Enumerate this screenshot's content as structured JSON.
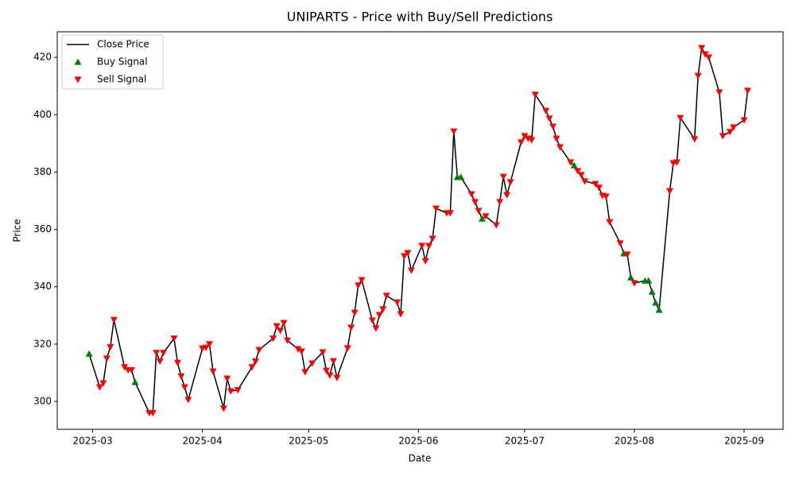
{
  "chart_data": {
    "type": "line",
    "title": "UNIPARTS - Price with Buy/Sell Predictions",
    "x_label": "Date",
    "y_label": "Price",
    "x": [
      "2025-02-28",
      "2025-03-03",
      "2025-03-04",
      "2025-03-05",
      "2025-03-06",
      "2025-03-07",
      "2025-03-10",
      "2025-03-11",
      "2025-03-12",
      "2025-03-13",
      "2025-03-17",
      "2025-03-18",
      "2025-03-19",
      "2025-03-20",
      "2025-03-21",
      "2025-03-24",
      "2025-03-25",
      "2025-03-26",
      "2025-03-27",
      "2025-03-28",
      "2025-04-01",
      "2025-04-02",
      "2025-04-03",
      "2025-04-04",
      "2025-04-07",
      "2025-04-08",
      "2025-04-09",
      "2025-04-11",
      "2025-04-15",
      "2025-04-16",
      "2025-04-17",
      "2025-04-21",
      "2025-04-22",
      "2025-04-23",
      "2025-04-24",
      "2025-04-25",
      "2025-04-28",
      "2025-04-29",
      "2025-04-30",
      "2025-05-02",
      "2025-05-05",
      "2025-05-06",
      "2025-05-07",
      "2025-05-08",
      "2025-05-09",
      "2025-05-12",
      "2025-05-13",
      "2025-05-14",
      "2025-05-15",
      "2025-05-16",
      "2025-05-19",
      "2025-05-20",
      "2025-05-21",
      "2025-05-22",
      "2025-05-23",
      "2025-05-26",
      "2025-05-27",
      "2025-05-28",
      "2025-05-29",
      "2025-05-30",
      "2025-06-02",
      "2025-06-03",
      "2025-06-04",
      "2025-06-05",
      "2025-06-06",
      "2025-06-09",
      "2025-06-10",
      "2025-06-11",
      "2025-06-12",
      "2025-06-13",
      "2025-06-16",
      "2025-06-17",
      "2025-06-18",
      "2025-06-19",
      "2025-06-20",
      "2025-06-23",
      "2025-06-24",
      "2025-06-25",
      "2025-06-26",
      "2025-06-27",
      "2025-06-30",
      "2025-07-01",
      "2025-07-02",
      "2025-07-03",
      "2025-07-04",
      "2025-07-07",
      "2025-07-08",
      "2025-07-09",
      "2025-07-10",
      "2025-07-11",
      "2025-07-14",
      "2025-07-15",
      "2025-07-16",
      "2025-07-17",
      "2025-07-18",
      "2025-07-21",
      "2025-07-22",
      "2025-07-23",
      "2025-07-24",
      "2025-07-25",
      "2025-07-28",
      "2025-07-29",
      "2025-07-30",
      "2025-07-31",
      "2025-08-01",
      "2025-08-04",
      "2025-08-05",
      "2025-08-06",
      "2025-08-07",
      "2025-08-08",
      "2025-08-11",
      "2025-08-12",
      "2025-08-13",
      "2025-08-14",
      "2025-08-18",
      "2025-08-19",
      "2025-08-20",
      "2025-08-21",
      "2025-08-22",
      "2025-08-25",
      "2025-08-26",
      "2025-08-28",
      "2025-08-29",
      "2025-09-01",
      "2025-09-02"
    ],
    "series": [
      {
        "name": "Close Price",
        "kind": "line",
        "color": "#000000",
        "values": [
          316.6,
          305,
          306.4,
          315,
          319,
          328.5,
          312,
          311,
          311,
          306.7,
          296,
          296,
          317,
          314,
          317,
          322,
          313.5,
          308.8,
          305,
          300.6,
          318.5,
          318.8,
          320,
          310.5,
          297.6,
          308,
          303.6,
          304,
          312,
          314,
          318,
          322,
          326.3,
          324.7,
          327.4,
          321.3,
          318.3,
          317.5,
          310.3,
          313.3,
          317.2,
          310.8,
          309.1,
          314.1,
          308.3,
          318.6,
          325.8,
          331,
          340.5,
          342.4,
          328.3,
          325.5,
          330.2,
          332.2,
          336.9,
          334.6,
          330.5,
          350.7,
          351.8,
          345.7,
          354.3,
          349,
          354.3,
          356.8,
          367.3,
          365.7,
          365.7,
          394.2,
          378.2,
          378.2,
          372.3,
          369.6,
          366.5,
          363.7,
          364.6,
          361.5,
          369.6,
          378.4,
          372,
          376.5,
          390.4,
          392.6,
          391.7,
          391.2,
          407,
          401.4,
          398.7,
          395.9,
          391.7,
          388.7,
          383.4,
          382.3,
          380.4,
          379,
          376.8,
          375.9,
          374.6,
          371.8,
          371.5,
          362.6,
          355.2,
          351.6,
          351.3,
          343.2,
          341.3,
          342.1,
          342.1,
          338.2,
          334.4,
          331.9,
          373.4,
          383.1,
          383.4,
          398.9,
          391.5,
          413.6,
          423.3,
          421.1,
          420,
          407.8,
          392.6,
          394,
          395.6,
          398.1,
          408.4
        ]
      },
      {
        "name": "Buy Signal",
        "kind": "buy",
        "color": "#008000",
        "values": [
          316.6,
          null,
          null,
          null,
          null,
          null,
          null,
          null,
          null,
          306.7,
          null,
          null,
          null,
          null,
          null,
          null,
          null,
          null,
          null,
          null,
          null,
          null,
          null,
          null,
          null,
          null,
          null,
          null,
          null,
          null,
          null,
          null,
          null,
          null,
          null,
          null,
          null,
          null,
          null,
          null,
          null,
          null,
          null,
          null,
          null,
          null,
          null,
          null,
          null,
          null,
          null,
          null,
          null,
          null,
          null,
          null,
          null,
          null,
          null,
          null,
          null,
          null,
          null,
          null,
          null,
          null,
          null,
          null,
          378.2,
          378.2,
          null,
          null,
          null,
          363.7,
          null,
          null,
          null,
          null,
          null,
          null,
          null,
          null,
          null,
          null,
          null,
          null,
          null,
          null,
          null,
          null,
          null,
          382.3,
          null,
          null,
          null,
          null,
          null,
          null,
          null,
          null,
          null,
          351.6,
          null,
          343.2,
          null,
          342.1,
          342.1,
          338.2,
          334.4,
          331.9,
          null,
          null,
          null,
          null,
          null,
          null,
          null,
          null,
          null,
          null,
          null,
          null,
          null,
          null,
          null
        ]
      },
      {
        "name": "Sell Signal",
        "kind": "sell",
        "color": "#ff0000",
        "values": [
          null,
          305,
          306.4,
          315,
          319,
          328.5,
          312,
          311,
          311,
          null,
          296,
          296,
          317,
          314,
          317,
          322,
          313.5,
          308.8,
          305,
          300.6,
          318.5,
          318.8,
          320,
          310.5,
          297.6,
          308,
          303.6,
          304,
          312,
          314,
          318,
          322,
          326.3,
          324.7,
          327.4,
          321.3,
          318.3,
          317.5,
          310.3,
          313.3,
          317.2,
          310.8,
          309.1,
          314.1,
          308.3,
          318.6,
          325.8,
          331,
          340.5,
          342.4,
          328.3,
          325.5,
          330.2,
          332.2,
          336.9,
          334.6,
          330.5,
          350.7,
          351.8,
          345.7,
          354.3,
          349,
          354.3,
          356.8,
          367.3,
          365.7,
          365.7,
          394.2,
          null,
          null,
          372.3,
          369.6,
          366.5,
          null,
          364.6,
          361.5,
          369.6,
          378.4,
          372,
          376.5,
          390.4,
          392.6,
          391.7,
          391.2,
          407,
          401.4,
          398.7,
          395.9,
          391.7,
          388.7,
          383.4,
          null,
          380.4,
          379,
          376.8,
          375.9,
          374.6,
          371.8,
          371.5,
          362.6,
          355.2,
          null,
          351.3,
          null,
          341.3,
          null,
          null,
          null,
          null,
          null,
          373.4,
          383.1,
          383.4,
          398.9,
          391.5,
          413.6,
          423.3,
          421.1,
          420,
          407.8,
          392.6,
          394,
          395.6,
          398.1,
          408.4
        ]
      }
    ],
    "xlim": [
      "2025-02-19",
      "2025-09-12"
    ],
    "xticks": [
      {
        "value": "2025-03-01",
        "label": "2025-03"
      },
      {
        "value": "2025-04-01",
        "label": "2025-04"
      },
      {
        "value": "2025-05-01",
        "label": "2025-05"
      },
      {
        "value": "2025-06-01",
        "label": "2025-06"
      },
      {
        "value": "2025-07-01",
        "label": "2025-07"
      },
      {
        "value": "2025-08-01",
        "label": "2025-08"
      },
      {
        "value": "2025-09-01",
        "label": "2025-09"
      }
    ],
    "ylim": [
      290.3,
      428.9
    ],
    "yticks": [
      300,
      320,
      340,
      360,
      380,
      400,
      420
    ],
    "grid": false,
    "legend": "upper left"
  }
}
